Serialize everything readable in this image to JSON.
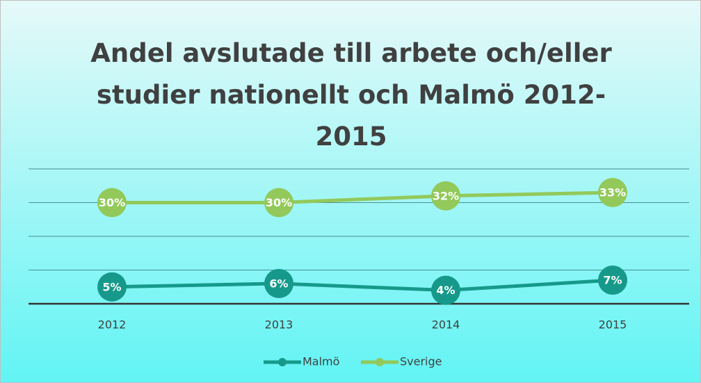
{
  "chart_data": {
    "type": "line",
    "title": "Andel avslutade till arbete och/eller studier nationellt och Malmö 2012-2015",
    "categories": [
      "2012",
      "2013",
      "2014",
      "2015"
    ],
    "series": [
      {
        "name": "Malmö",
        "color": "#16998a",
        "values": [
          5,
          6,
          4,
          7
        ],
        "value_labels": [
          "5%",
          "6%",
          "4%",
          "7%"
        ]
      },
      {
        "name": "Sverige",
        "color": "#92c95a",
        "values": [
          30,
          30,
          32,
          33
        ],
        "value_labels": [
          "30%",
          "30%",
          "32%",
          "33%"
        ]
      }
    ],
    "ylim": [
      0,
      40
    ],
    "yticks": [
      0,
      10,
      20,
      30,
      40
    ],
    "grid": true,
    "legend": "bottom"
  }
}
